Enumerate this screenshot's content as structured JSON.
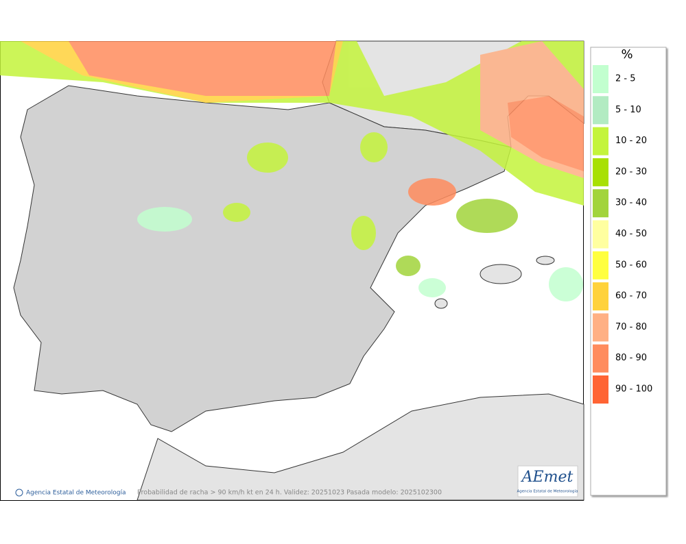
{
  "legend": {
    "title": "%",
    "items": [
      {
        "label": "2 - 5",
        "color": "#c2ffcf"
      },
      {
        "label": "5 - 10",
        "color": "#b2ebc2"
      },
      {
        "label": "10 - 20",
        "color": "#c4f43c"
      },
      {
        "label": "20 - 30",
        "color": "#a8e004"
      },
      {
        "label": "30 - 40",
        "color": "#a2d43c"
      },
      {
        "label": "40 - 50",
        "color": "#ffffa0"
      },
      {
        "label": "50 - 60",
        "color": "#ffff40"
      },
      {
        "label": "60 - 70",
        "color": "#ffd23c"
      },
      {
        "label": "70 - 80",
        "color": "#ffb084"
      },
      {
        "label": "80 - 90",
        "color": "#ff8c5e"
      },
      {
        "label": "90 - 100",
        "color": "#ff6434"
      }
    ]
  },
  "footer": {
    "agency": "Agencia Estatal de Meteorología",
    "caption": "Probabilidad de racha > 90 km/h kt en 24 h. Validez: 20251023 Pasada modelo: 2025102300"
  },
  "logo": {
    "name": "AEmet",
    "subtitle": "Agencia Estatal de Meteorología"
  }
}
